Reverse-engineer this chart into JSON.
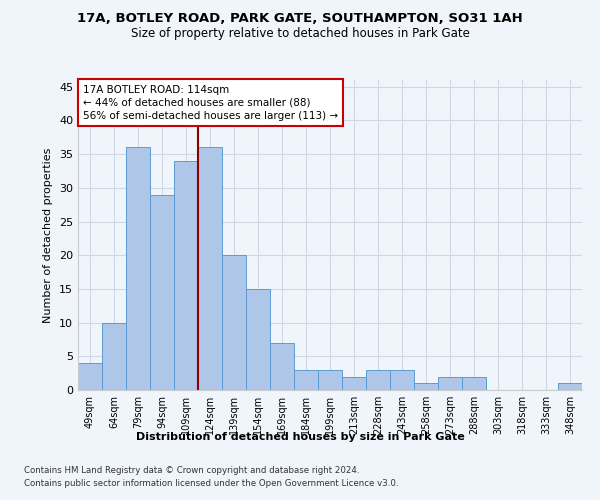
{
  "title1": "17A, BOTLEY ROAD, PARK GATE, SOUTHAMPTON, SO31 1AH",
  "title2": "Size of property relative to detached houses in Park Gate",
  "xlabel": "Distribution of detached houses by size in Park Gate",
  "ylabel": "Number of detached properties",
  "categories": [
    "49sqm",
    "64sqm",
    "79sqm",
    "94sqm",
    "109sqm",
    "124sqm",
    "139sqm",
    "154sqm",
    "169sqm",
    "184sqm",
    "199sqm",
    "213sqm",
    "228sqm",
    "243sqm",
    "258sqm",
    "273sqm",
    "288sqm",
    "303sqm",
    "318sqm",
    "333sqm",
    "348sqm"
  ],
  "values": [
    4,
    10,
    36,
    29,
    34,
    36,
    20,
    15,
    7,
    3,
    3,
    2,
    3,
    3,
    1,
    2,
    2,
    0,
    0,
    0,
    1
  ],
  "bar_color": "#aec6e8",
  "bar_edge_color": "#5b9bd5",
  "grid_color": "#d0d8e8",
  "background_color": "#f0f4fb",
  "vline_x": 4.5,
  "vline_color": "#8b0000",
  "annotation_text": "17A BOTLEY ROAD: 114sqm\n← 44% of detached houses are smaller (88)\n56% of semi-detached houses are larger (113) →",
  "annotation_box_color": "#ffffff",
  "annotation_box_edge": "#cc0000",
  "ylim": [
    0,
    46
  ],
  "yticks": [
    0,
    5,
    10,
    15,
    20,
    25,
    30,
    35,
    40,
    45
  ],
  "footer1": "Contains HM Land Registry data © Crown copyright and database right 2024.",
  "footer2": "Contains public sector information licensed under the Open Government Licence v3.0."
}
